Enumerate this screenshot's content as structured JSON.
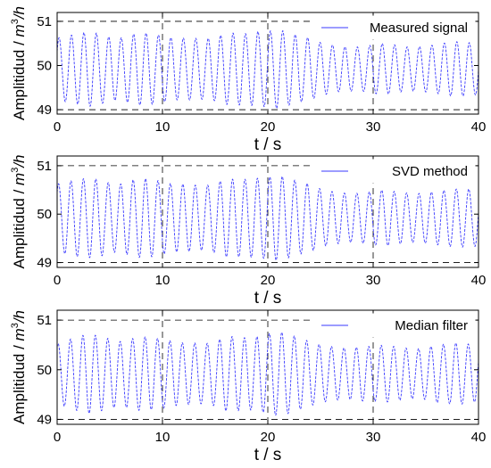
{
  "chart_data": [
    {
      "type": "line",
      "legend": "Measured signal",
      "legend_position": "top-right",
      "xlabel": "t / s",
      "ylabel_prefix": "Amplitidud / ",
      "ylabel_unit": "m",
      "ylabel_exp": "3",
      "ylabel_suffix": "/h",
      "xlim": [
        0,
        40
      ],
      "ylim": [
        48.9,
        51.2
      ],
      "xticks": [
        0,
        10,
        20,
        30,
        40
      ],
      "yticks": [
        49,
        50,
        51
      ],
      "grid": "dashed",
      "series_color": "#3a3aff",
      "oscillation": {
        "period_s": 1.18,
        "mean": 49.92,
        "x": [
          0,
          1,
          2,
          3,
          4,
          5,
          6,
          7,
          8,
          9,
          10,
          11,
          12,
          13,
          14,
          15,
          16,
          17,
          18,
          19,
          20,
          21,
          22,
          23,
          24,
          25,
          26,
          27,
          28,
          29,
          30,
          31,
          32,
          33,
          34,
          35,
          36,
          37,
          38,
          39,
          40
        ],
        "amplitude": [
          0.7,
          0.75,
          0.8,
          0.85,
          0.8,
          0.72,
          0.7,
          0.78,
          0.82,
          0.8,
          0.75,
          0.7,
          0.7,
          0.7,
          0.68,
          0.72,
          0.8,
          0.82,
          0.8,
          0.85,
          0.85,
          0.9,
          0.82,
          0.75,
          0.7,
          0.6,
          0.55,
          0.5,
          0.5,
          0.5,
          0.55,
          0.58,
          0.55,
          0.5,
          0.5,
          0.52,
          0.55,
          0.6,
          0.62,
          0.6,
          0.58
        ]
      }
    },
    {
      "type": "line",
      "legend": "SVD method",
      "legend_position": "top-right",
      "xlabel": "t / s",
      "ylabel_prefix": "Amplitidud / ",
      "ylabel_unit": "m",
      "ylabel_exp": "3",
      "ylabel_suffix": "/h",
      "xlim": [
        0,
        40
      ],
      "ylim": [
        48.9,
        51.2
      ],
      "xticks": [
        0,
        10,
        20,
        30,
        40
      ],
      "yticks": [
        49,
        50,
        51
      ],
      "grid": "dashed",
      "series_color": "#3a3aff",
      "oscillation": {
        "period_s": 1.18,
        "mean": 49.92,
        "x": [
          0,
          1,
          2,
          3,
          4,
          5,
          6,
          7,
          8,
          9,
          10,
          11,
          12,
          13,
          14,
          15,
          16,
          17,
          18,
          19,
          20,
          21,
          22,
          23,
          24,
          25,
          26,
          27,
          28,
          29,
          30,
          31,
          32,
          33,
          34,
          35,
          36,
          37,
          38,
          39,
          40
        ],
        "amplitude": [
          0.7,
          0.75,
          0.8,
          0.82,
          0.8,
          0.72,
          0.7,
          0.78,
          0.82,
          0.8,
          0.75,
          0.7,
          0.7,
          0.68,
          0.66,
          0.72,
          0.8,
          0.8,
          0.8,
          0.82,
          0.84,
          0.88,
          0.82,
          0.75,
          0.7,
          0.6,
          0.55,
          0.52,
          0.5,
          0.52,
          0.55,
          0.58,
          0.55,
          0.52,
          0.5,
          0.52,
          0.55,
          0.58,
          0.6,
          0.6,
          0.58
        ]
      }
    },
    {
      "type": "line",
      "legend": "Median filter",
      "legend_position": "top-right",
      "xlabel": "t / s",
      "ylabel_prefix": "Amplitidud / ",
      "ylabel_unit": "m",
      "ylabel_exp": "3",
      "ylabel_suffix": "/h",
      "xlim": [
        0,
        40
      ],
      "ylim": [
        48.9,
        51.2
      ],
      "xticks": [
        0,
        10,
        20,
        30,
        40
      ],
      "yticks": [
        49,
        50,
        51
      ],
      "grid": "dashed",
      "series_color": "#3a3aff",
      "oscillation": {
        "period_s": 1.18,
        "mean": 49.92,
        "x": [
          0,
          1,
          2,
          3,
          4,
          5,
          6,
          7,
          8,
          9,
          10,
          11,
          12,
          13,
          14,
          15,
          16,
          17,
          18,
          19,
          20,
          21,
          22,
          23,
          24,
          25,
          26,
          27,
          28,
          29,
          30,
          31,
          32,
          33,
          34,
          35,
          36,
          37,
          38,
          39,
          40
        ],
        "amplitude": [
          0.6,
          0.68,
          0.75,
          0.8,
          0.76,
          0.7,
          0.65,
          0.7,
          0.75,
          0.72,
          0.7,
          0.65,
          0.62,
          0.62,
          0.6,
          0.65,
          0.75,
          0.75,
          0.72,
          0.75,
          0.8,
          0.85,
          0.8,
          0.72,
          0.65,
          0.58,
          0.55,
          0.52,
          0.52,
          0.55,
          0.55,
          0.58,
          0.55,
          0.52,
          0.5,
          0.52,
          0.58,
          0.6,
          0.62,
          0.6,
          0.55
        ]
      }
    }
  ]
}
